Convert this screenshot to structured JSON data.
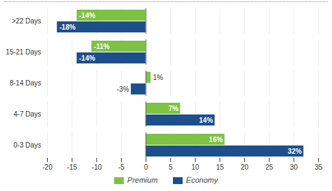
{
  "chart_data": {
    "type": "bar",
    "orientation": "horizontal",
    "categories": [
      ">22 Days",
      "15-21 Days",
      "8-14 Days",
      "4-7 Days",
      "0-3 Days"
    ],
    "series": [
      {
        "name": "Premium",
        "color": "#7dc242",
        "values": [
          -14,
          -11,
          1,
          7,
          16
        ],
        "value_labels": [
          "-14%",
          "-11%",
          "1%",
          "7%",
          "16%"
        ]
      },
      {
        "name": "Economy",
        "color": "#1d4f8c",
        "values": [
          -18,
          -14,
          -3,
          14,
          32
        ],
        "value_labels": [
          "-18%",
          "-14%",
          "-3%",
          "14%",
          "32%"
        ]
      }
    ],
    "xlim": [
      -20,
      35
    ],
    "xticks": [
      -20,
      -15,
      -10,
      -5,
      0,
      5,
      10,
      15,
      20,
      25,
      30,
      35
    ],
    "grid": true,
    "data_labels": true,
    "legend": "bottom"
  }
}
